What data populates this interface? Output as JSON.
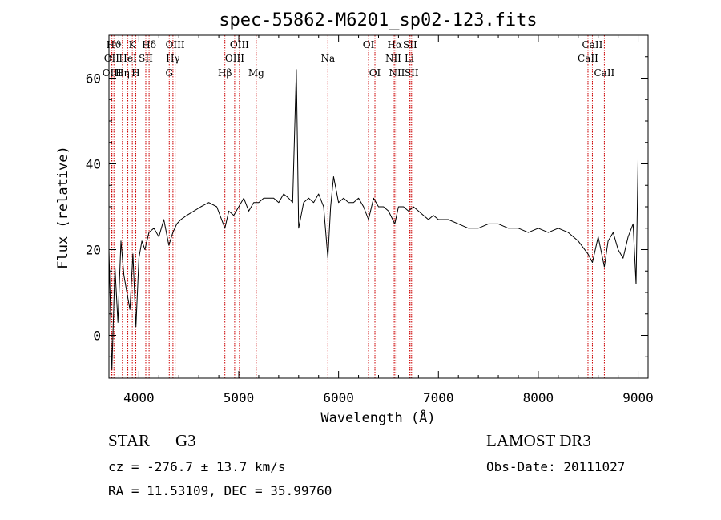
{
  "chart_data": {
    "type": "line",
    "title": "spec-55862-M6201_sp02-123.fits",
    "xlabel": "Wavelength (Å)",
    "ylabel": "Flux (relative)",
    "xlim": [
      3700,
      9100
    ],
    "ylim": [
      -10,
      70
    ],
    "xticks": [
      4000,
      5000,
      6000,
      7000,
      8000,
      9000
    ],
    "yticks": [
      0,
      20,
      40,
      60
    ],
    "line_color": "#000000",
    "marker_color": "#cc0000",
    "series": [
      {
        "name": "flux",
        "x": [
          3700,
          3730,
          3760,
          3790,
          3820,
          3850,
          3880,
          3910,
          3940,
          3970,
          4000,
          4030,
          4060,
          4100,
          4150,
          4200,
          4250,
          4300,
          4340,
          4380,
          4420,
          4480,
          4550,
          4620,
          4700,
          4780,
          4861,
          4900,
          4950,
          5000,
          5050,
          5100,
          5150,
          5200,
          5250,
          5300,
          5350,
          5400,
          5450,
          5500,
          5540,
          5577,
          5600,
          5650,
          5700,
          5750,
          5800,
          5850,
          5893,
          5920,
          5950,
          6000,
          6050,
          6100,
          6150,
          6200,
          6250,
          6300,
          6350,
          6400,
          6450,
          6500,
          6563,
          6600,
          6650,
          6700,
          6750,
          6800,
          6850,
          6900,
          6950,
          7000,
          7100,
          7200,
          7300,
          7400,
          7500,
          7600,
          7700,
          7800,
          7900,
          8000,
          8100,
          8200,
          8300,
          8400,
          8498,
          8542,
          8600,
          8662,
          8700,
          8750,
          8800,
          8850,
          8900,
          8950,
          8980,
          9000
        ],
        "values": [
          20,
          -8,
          16,
          3,
          22,
          14,
          10,
          6,
          19,
          2,
          18,
          22,
          20,
          24,
          25,
          23,
          27,
          21,
          24,
          26,
          27,
          28,
          29,
          30,
          31,
          30,
          25,
          29,
          28,
          30,
          32,
          29,
          31,
          31,
          32,
          32,
          32,
          31,
          33,
          32,
          31,
          62,
          25,
          31,
          32,
          31,
          33,
          30,
          18,
          30,
          37,
          31,
          32,
          31,
          31,
          32,
          30,
          27,
          32,
          30,
          30,
          29,
          26,
          30,
          30,
          29,
          30,
          29,
          28,
          27,
          28,
          27,
          27,
          26,
          25,
          25,
          26,
          26,
          25,
          25,
          24,
          25,
          24,
          25,
          24,
          22,
          19,
          17,
          23,
          16,
          22,
          24,
          20,
          18,
          23,
          26,
          12,
          41
        ]
      }
    ],
    "lines": [
      {
        "label": "Hϑ",
        "wave": 3750,
        "row": 0
      },
      {
        "label": "OII",
        "wave": 3727,
        "row": 1
      },
      {
        "label": "OIII",
        "wave": 3730,
        "row": 2
      },
      {
        "label": "K",
        "wave": 3934,
        "row": 0
      },
      {
        "label": "HeI",
        "wave": 3889,
        "row": 1
      },
      {
        "label": "Hη",
        "wave": 3835,
        "row": 2
      },
      {
        "label": "H",
        "wave": 3969,
        "row": 2
      },
      {
        "label": "SII",
        "wave": 4069,
        "row": 1
      },
      {
        "label": "Hδ",
        "wave": 4102,
        "row": 0
      },
      {
        "label": "OIII",
        "wave": 4363,
        "row": 0
      },
      {
        "label": "Hγ",
        "wave": 4341,
        "row": 1
      },
      {
        "label": "G",
        "wave": 4304,
        "row": 2
      },
      {
        "label": "Hβ",
        "wave": 4861,
        "row": 2
      },
      {
        "label": "OIII",
        "wave": 5007,
        "row": 0
      },
      {
        "label": "OIII",
        "wave": 4959,
        "row": 1
      },
      {
        "label": "Mg",
        "wave": 5175,
        "row": 2
      },
      {
        "label": "Na",
        "wave": 5893,
        "row": 1
      },
      {
        "label": "OI",
        "wave": 6300,
        "row": 0
      },
      {
        "label": "OI",
        "wave": 6364,
        "row": 2
      },
      {
        "label": "Hα",
        "wave": 6563,
        "row": 0
      },
      {
        "label": "SII",
        "wave": 6716,
        "row": 0
      },
      {
        "label": "NII",
        "wave": 6548,
        "row": 1
      },
      {
        "label": "Li",
        "wave": 6708,
        "row": 1
      },
      {
        "label": "NII",
        "wave": 6584,
        "row": 2
      },
      {
        "label": "SII",
        "wave": 6731,
        "row": 2
      },
      {
        "label": "CaII",
        "wave": 8542,
        "row": 0
      },
      {
        "label": "CaII",
        "wave": 8498,
        "row": 1
      },
      {
        "label": "CaII",
        "wave": 8662,
        "row": 2
      }
    ]
  },
  "footer": {
    "object_class": "STAR",
    "subclass": "G3",
    "survey": "LAMOST DR3",
    "redshift": "cz = -276.7 ± 13.7 km/s",
    "obs_date": "Obs-Date: 20111027",
    "coordinates": "RA =  11.53109, DEC =  35.99760"
  }
}
